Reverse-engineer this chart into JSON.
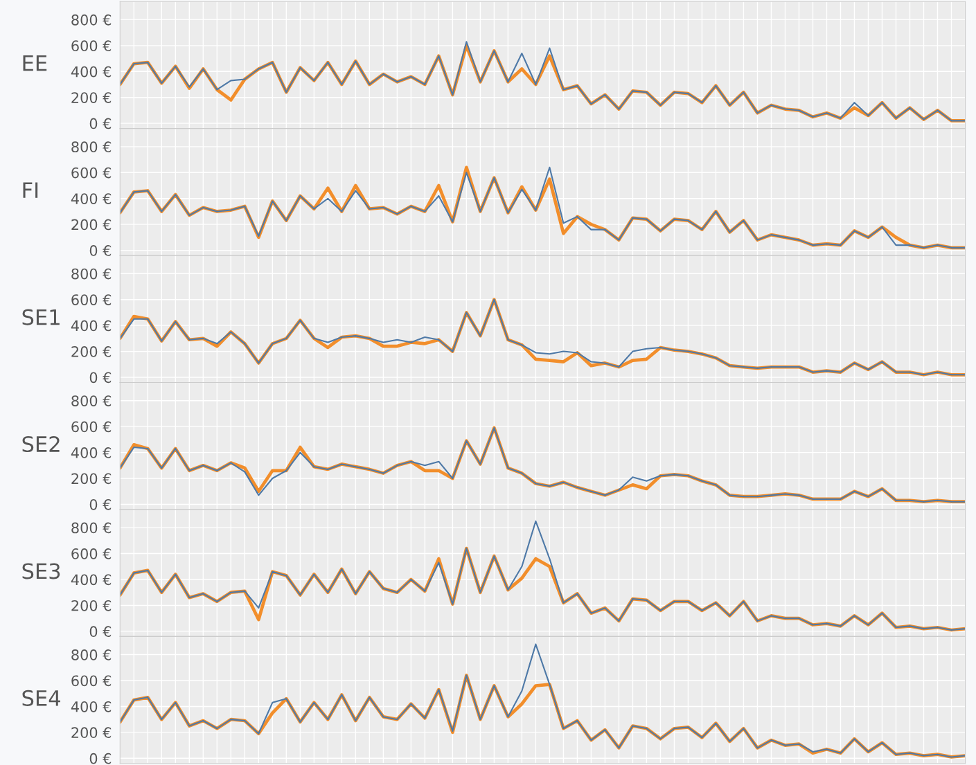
{
  "chart_data": [
    {
      "type": "line",
      "ylabel": "EE",
      "categories": [
        null,
        null,
        null,
        null,
        null,
        null,
        null,
        null,
        null,
        null,
        null,
        null,
        null,
        null,
        null,
        null,
        null,
        null,
        null,
        null,
        null,
        null,
        null,
        null,
        null,
        null,
        null,
        null,
        null,
        null,
        null,
        null,
        null,
        null,
        null,
        null,
        null,
        null,
        null,
        null,
        null,
        null,
        null,
        null,
        null,
        null,
        null,
        null,
        null,
        null,
        null,
        null,
        null,
        null,
        null,
        null,
        null,
        null,
        null,
        null,
        null,
        null
      ],
      "ylim": [
        -40,
        940
      ],
      "yticks": [
        {
          "value": 0,
          "label": "0 €"
        },
        {
          "value": 200,
          "label": "200 €"
        },
        {
          "value": 400,
          "label": "400 €"
        },
        {
          "value": 600,
          "label": "600 €"
        },
        {
          "value": 800,
          "label": "800 €"
        }
      ],
      "grid": true,
      "tick_labels": "y",
      "series": [
        {
          "color": "#f28e2b",
          "values": [
            300,
            460,
            470,
            310,
            440,
            270,
            420,
            260,
            180,
            340,
            420,
            470,
            240,
            430,
            330,
            470,
            300,
            480,
            300,
            380,
            320,
            360,
            300,
            520,
            220,
            600,
            320,
            560,
            320,
            420,
            300,
            520,
            260,
            290,
            150,
            220,
            110,
            250,
            240,
            140,
            240,
            230,
            160,
            290,
            140,
            240,
            80,
            140,
            110,
            100,
            50,
            80,
            40,
            120,
            60,
            160,
            40,
            120,
            30,
            100,
            20,
            20
          ]
        },
        {
          "color": "#4e79a7",
          "values": [
            300,
            460,
            470,
            310,
            440,
            280,
            420,
            260,
            330,
            340,
            420,
            470,
            240,
            430,
            330,
            470,
            300,
            480,
            300,
            380,
            320,
            360,
            300,
            520,
            220,
            630,
            320,
            560,
            320,
            540,
            300,
            580,
            260,
            290,
            150,
            220,
            110,
            250,
            240,
            140,
            240,
            230,
            160,
            290,
            140,
            240,
            80,
            140,
            110,
            100,
            50,
            80,
            40,
            160,
            60,
            160,
            40,
            120,
            30,
            100,
            20,
            20
          ]
        }
      ]
    },
    {
      "type": "line",
      "ylabel": "FI",
      "categories": [
        null,
        null,
        null,
        null,
        null,
        null,
        null,
        null,
        null,
        null,
        null,
        null,
        null,
        null,
        null,
        null,
        null,
        null,
        null,
        null,
        null,
        null,
        null,
        null,
        null,
        null,
        null,
        null,
        null,
        null,
        null,
        null,
        null,
        null,
        null,
        null,
        null,
        null,
        null,
        null,
        null,
        null,
        null,
        null,
        null,
        null,
        null,
        null,
        null,
        null,
        null,
        null,
        null,
        null,
        null,
        null,
        null,
        null,
        null,
        null,
        null,
        null
      ],
      "ylim": [
        -40,
        940
      ],
      "yticks": [
        {
          "value": 0,
          "label": "0 €"
        },
        {
          "value": 200,
          "label": "200 €"
        },
        {
          "value": 400,
          "label": "400 €"
        },
        {
          "value": 600,
          "label": "600 €"
        },
        {
          "value": 800,
          "label": "800 €"
        }
      ],
      "grid": true,
      "tick_labels": "y",
      "series": [
        {
          "color": "#f28e2b",
          "values": [
            290,
            450,
            460,
            300,
            430,
            270,
            330,
            300,
            310,
            340,
            100,
            380,
            230,
            420,
            320,
            480,
            300,
            500,
            320,
            330,
            280,
            340,
            300,
            500,
            220,
            640,
            300,
            560,
            290,
            490,
            310,
            550,
            130,
            260,
            200,
            160,
            80,
            250,
            240,
            150,
            240,
            230,
            160,
            300,
            140,
            230,
            80,
            120,
            100,
            80,
            40,
            50,
            40,
            150,
            100,
            180,
            100,
            40,
            20,
            40,
            20,
            20
          ]
        },
        {
          "color": "#4e79a7",
          "values": [
            290,
            450,
            460,
            300,
            430,
            270,
            330,
            300,
            310,
            340,
            110,
            380,
            230,
            420,
            320,
            400,
            300,
            460,
            320,
            330,
            280,
            340,
            300,
            420,
            220,
            600,
            300,
            560,
            290,
            470,
            310,
            640,
            210,
            260,
            160,
            160,
            80,
            250,
            240,
            150,
            240,
            230,
            160,
            300,
            140,
            230,
            80,
            120,
            100,
            80,
            40,
            50,
            40,
            150,
            100,
            180,
            40,
            40,
            20,
            40,
            20,
            20
          ]
        }
      ]
    },
    {
      "type": "line",
      "ylabel": "SE1",
      "categories": [
        null,
        null,
        null,
        null,
        null,
        null,
        null,
        null,
        null,
        null,
        null,
        null,
        null,
        null,
        null,
        null,
        null,
        null,
        null,
        null,
        null,
        null,
        null,
        null,
        null,
        null,
        null,
        null,
        null,
        null,
        null,
        null,
        null,
        null,
        null,
        null,
        null,
        null,
        null,
        null,
        null,
        null,
        null,
        null,
        null,
        null,
        null,
        null,
        null,
        null,
        null,
        null,
        null,
        null,
        null,
        null,
        null,
        null,
        null,
        null,
        null,
        null
      ],
      "ylim": [
        -40,
        940
      ],
      "yticks": [
        {
          "value": 0,
          "label": "0 €"
        },
        {
          "value": 200,
          "label": "200 €"
        },
        {
          "value": 400,
          "label": "400 €"
        },
        {
          "value": 600,
          "label": "600 €"
        },
        {
          "value": 800,
          "label": "800 €"
        }
      ],
      "grid": true,
      "tick_labels": "y",
      "series": [
        {
          "color": "#f28e2b",
          "values": [
            300,
            470,
            450,
            280,
            430,
            290,
            300,
            240,
            350,
            260,
            110,
            260,
            300,
            440,
            300,
            230,
            310,
            320,
            300,
            240,
            240,
            270,
            260,
            290,
            200,
            500,
            320,
            600,
            290,
            250,
            140,
            130,
            120,
            190,
            90,
            110,
            80,
            130,
            140,
            230,
            210,
            200,
            180,
            150,
            90,
            80,
            70,
            80,
            80,
            80,
            40,
            50,
            40,
            110,
            60,
            120,
            40,
            40,
            20,
            40,
            20,
            20
          ]
        },
        {
          "color": "#4e79a7",
          "values": [
            300,
            450,
            450,
            280,
            430,
            290,
            300,
            260,
            350,
            260,
            110,
            260,
            300,
            440,
            300,
            270,
            310,
            320,
            300,
            270,
            290,
            270,
            310,
            290,
            200,
            500,
            320,
            600,
            290,
            250,
            190,
            180,
            200,
            190,
            120,
            110,
            80,
            200,
            220,
            230,
            210,
            200,
            180,
            150,
            90,
            80,
            70,
            80,
            80,
            80,
            40,
            50,
            40,
            110,
            60,
            120,
            40,
            40,
            20,
            40,
            20,
            20
          ]
        }
      ]
    },
    {
      "type": "line",
      "ylabel": "SE2",
      "categories": [
        null,
        null,
        null,
        null,
        null,
        null,
        null,
        null,
        null,
        null,
        null,
        null,
        null,
        null,
        null,
        null,
        null,
        null,
        null,
        null,
        null,
        null,
        null,
        null,
        null,
        null,
        null,
        null,
        null,
        null,
        null,
        null,
        null,
        null,
        null,
        null,
        null,
        null,
        null,
        null,
        null,
        null,
        null,
        null,
        null,
        null,
        null,
        null,
        null,
        null,
        null,
        null,
        null,
        null,
        null,
        null,
        null,
        null,
        null,
        null,
        null,
        null
      ],
      "ylim": [
        -40,
        940
      ],
      "yticks": [
        {
          "value": 0,
          "label": "0 €"
        },
        {
          "value": 200,
          "label": "200 €"
        },
        {
          "value": 400,
          "label": "400 €"
        },
        {
          "value": 600,
          "label": "600 €"
        },
        {
          "value": 800,
          "label": "800 €"
        }
      ],
      "grid": true,
      "tick_labels": "y",
      "series": [
        {
          "color": "#f28e2b",
          "values": [
            280,
            460,
            430,
            280,
            430,
            260,
            300,
            260,
            320,
            280,
            100,
            260,
            260,
            440,
            290,
            270,
            310,
            290,
            270,
            240,
            300,
            330,
            260,
            260,
            200,
            490,
            310,
            590,
            280,
            240,
            160,
            140,
            170,
            130,
            100,
            70,
            110,
            150,
            120,
            220,
            230,
            220,
            180,
            150,
            70,
            60,
            60,
            70,
            80,
            70,
            40,
            40,
            40,
            100,
            60,
            120,
            30,
            30,
            20,
            30,
            20,
            20
          ]
        },
        {
          "color": "#4e79a7",
          "values": [
            280,
            440,
            430,
            280,
            430,
            260,
            300,
            260,
            320,
            250,
            70,
            200,
            260,
            400,
            290,
            270,
            310,
            290,
            270,
            240,
            300,
            330,
            300,
            330,
            200,
            490,
            310,
            590,
            280,
            240,
            160,
            140,
            170,
            130,
            100,
            70,
            110,
            210,
            180,
            220,
            230,
            220,
            180,
            150,
            70,
            60,
            60,
            70,
            80,
            70,
            40,
            40,
            40,
            100,
            60,
            120,
            30,
            30,
            20,
            30,
            20,
            20
          ]
        }
      ]
    },
    {
      "type": "line",
      "ylabel": "SE3",
      "categories": [
        null,
        null,
        null,
        null,
        null,
        null,
        null,
        null,
        null,
        null,
        null,
        null,
        null,
        null,
        null,
        null,
        null,
        null,
        null,
        null,
        null,
        null,
        null,
        null,
        null,
        null,
        null,
        null,
        null,
        null,
        null,
        null,
        null,
        null,
        null,
        null,
        null,
        null,
        null,
        null,
        null,
        null,
        null,
        null,
        null,
        null,
        null,
        null,
        null,
        null,
        null,
        null,
        null,
        null,
        null,
        null,
        null,
        null,
        null,
        null,
        null,
        null
      ],
      "ylim": [
        -40,
        940
      ],
      "yticks": [
        {
          "value": 0,
          "label": "0 €"
        },
        {
          "value": 200,
          "label": "200 €"
        },
        {
          "value": 400,
          "label": "400 €"
        },
        {
          "value": 600,
          "label": "600 €"
        },
        {
          "value": 800,
          "label": "800 €"
        }
      ],
      "grid": true,
      "tick_labels": "y",
      "series": [
        {
          "color": "#f28e2b",
          "values": [
            280,
            450,
            470,
            300,
            440,
            260,
            290,
            230,
            300,
            310,
            90,
            460,
            430,
            280,
            440,
            300,
            480,
            290,
            460,
            330,
            300,
            400,
            310,
            560,
            210,
            640,
            300,
            580,
            320,
            410,
            560,
            500,
            220,
            290,
            140,
            180,
            80,
            250,
            240,
            160,
            230,
            230,
            160,
            220,
            120,
            230,
            80,
            120,
            100,
            100,
            50,
            60,
            40,
            120,
            50,
            140,
            30,
            40,
            20,
            30,
            10,
            20
          ]
        },
        {
          "color": "#4e79a7",
          "values": [
            280,
            450,
            470,
            300,
            440,
            260,
            290,
            230,
            300,
            310,
            180,
            460,
            430,
            280,
            440,
            300,
            480,
            290,
            460,
            330,
            300,
            400,
            310,
            530,
            210,
            640,
            300,
            580,
            320,
            500,
            850,
            560,
            220,
            290,
            140,
            180,
            80,
            250,
            240,
            160,
            230,
            230,
            160,
            220,
            120,
            230,
            80,
            120,
            100,
            100,
            50,
            60,
            40,
            120,
            50,
            140,
            30,
            40,
            20,
            30,
            10,
            20
          ]
        }
      ]
    },
    {
      "type": "line",
      "ylabel": "SE4",
      "categories": [
        null,
        null,
        null,
        null,
        null,
        null,
        null,
        null,
        null,
        null,
        null,
        null,
        null,
        null,
        null,
        null,
        null,
        null,
        null,
        null,
        null,
        null,
        null,
        null,
        null,
        null,
        null,
        null,
        null,
        null,
        null,
        null,
        null,
        null,
        null,
        null,
        null,
        null,
        null,
        null,
        null,
        null,
        null,
        null,
        null,
        null,
        null,
        null,
        null,
        null,
        null,
        null,
        null,
        null,
        null,
        null,
        null,
        null,
        null,
        null,
        null,
        null
      ],
      "ylim": [
        -40,
        940
      ],
      "yticks": [
        {
          "value": 0,
          "label": "0 €"
        },
        {
          "value": 200,
          "label": "200 €"
        },
        {
          "value": 400,
          "label": "400 €"
        },
        {
          "value": 600,
          "label": "600 €"
        },
        {
          "value": 800,
          "label": "800 €"
        }
      ],
      "grid": true,
      "tick_labels": "y",
      "series": [
        {
          "color": "#f28e2b",
          "values": [
            280,
            450,
            470,
            300,
            430,
            250,
            290,
            230,
            300,
            290,
            190,
            350,
            460,
            280,
            430,
            300,
            490,
            290,
            470,
            320,
            300,
            420,
            310,
            530,
            200,
            640,
            300,
            560,
            320,
            420,
            560,
            570,
            230,
            290,
            140,
            220,
            80,
            250,
            230,
            150,
            230,
            240,
            160,
            270,
            130,
            230,
            80,
            140,
            100,
            110,
            40,
            70,
            40,
            150,
            50,
            120,
            30,
            40,
            20,
            30,
            10,
            20
          ]
        },
        {
          "color": "#4e79a7",
          "values": [
            280,
            450,
            470,
            300,
            430,
            250,
            290,
            230,
            300,
            290,
            190,
            430,
            460,
            280,
            430,
            300,
            490,
            290,
            470,
            320,
            300,
            420,
            310,
            530,
            210,
            640,
            300,
            560,
            320,
            520,
            880,
            570,
            230,
            290,
            140,
            220,
            80,
            250,
            230,
            150,
            230,
            240,
            160,
            270,
            130,
            230,
            80,
            140,
            100,
            110,
            50,
            70,
            40,
            150,
            50,
            120,
            30,
            40,
            20,
            30,
            10,
            20
          ]
        }
      ]
    }
  ]
}
